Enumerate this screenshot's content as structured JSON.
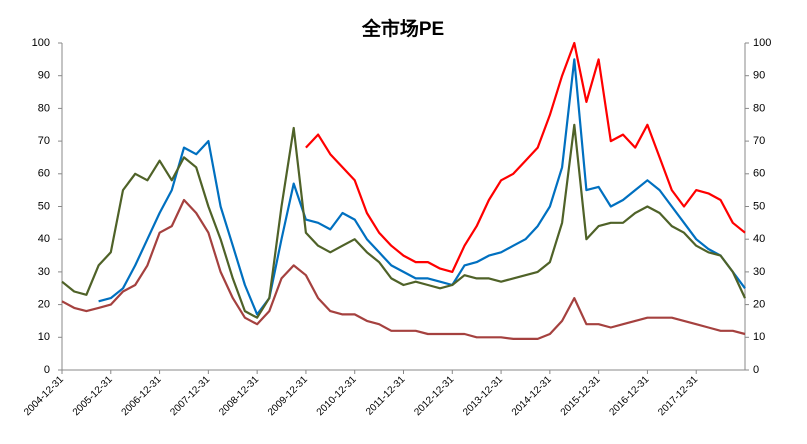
{
  "chart_data": {
    "type": "line",
    "title": "全市场PE",
    "categories": [
      "2004-12-31",
      null,
      null,
      null,
      "2005-12-31",
      null,
      null,
      null,
      "2006-12-31",
      null,
      null,
      null,
      "2007-12-31",
      null,
      null,
      null,
      "2008-12-31",
      null,
      null,
      null,
      "2009-12-31",
      null,
      null,
      null,
      "2010-12-31",
      null,
      null,
      null,
      "2011-12-31",
      null,
      null,
      null,
      "2012-12-31",
      null,
      null,
      null,
      "2013-12-31",
      null,
      null,
      null,
      "2014-12-31",
      null,
      null,
      null,
      "2015-12-31",
      null,
      null,
      null,
      "2016-12-31",
      null,
      null,
      null,
      "2017-12-31",
      null,
      null,
      null,
      null
    ],
    "series": [
      {
        "color": "#ff0000",
        "values": [
          null,
          null,
          null,
          null,
          null,
          null,
          null,
          null,
          null,
          null,
          null,
          null,
          null,
          null,
          null,
          null,
          null,
          null,
          null,
          null,
          68,
          72,
          66,
          62,
          58,
          48,
          42,
          38,
          35,
          33,
          33,
          31,
          30,
          38,
          44,
          52,
          58,
          60,
          64,
          68,
          78,
          90,
          100,
          82,
          95,
          70,
          72,
          68,
          75,
          65,
          55,
          50,
          55,
          54,
          52,
          45,
          42
        ]
      },
      {
        "color": "#0070c0",
        "values": [
          null,
          null,
          null,
          21,
          22,
          25,
          32,
          40,
          48,
          55,
          68,
          66,
          70,
          50,
          38,
          26,
          17,
          22,
          40,
          57,
          46,
          45,
          43,
          48,
          46,
          40,
          36,
          32,
          30,
          28,
          28,
          27,
          26,
          32,
          33,
          35,
          36,
          38,
          40,
          44,
          50,
          62,
          95,
          55,
          56,
          50,
          52,
          55,
          58,
          55,
          50,
          45,
          40,
          37,
          35,
          30,
          25
        ]
      },
      {
        "color": "#4f6228",
        "values": [
          27,
          24,
          23,
          32,
          36,
          55,
          60,
          58,
          64,
          58,
          65,
          62,
          50,
          40,
          28,
          18,
          16,
          22,
          50,
          74,
          42,
          38,
          36,
          38,
          40,
          36,
          33,
          28,
          26,
          27,
          26,
          25,
          26,
          29,
          28,
          28,
          27,
          28,
          29,
          30,
          33,
          45,
          75,
          40,
          44,
          45,
          45,
          48,
          50,
          48,
          44,
          42,
          38,
          36,
          35,
          30,
          22
        ]
      },
      {
        "color": "#a5413f",
        "values": [
          21,
          19,
          18,
          19,
          20,
          24,
          26,
          32,
          42,
          44,
          52,
          48,
          42,
          30,
          22,
          16,
          14,
          18,
          28,
          32,
          29,
          22,
          18,
          17,
          17,
          15,
          14,
          12,
          12,
          12,
          11,
          11,
          11,
          11,
          10,
          10,
          10,
          9.5,
          9.5,
          9.5,
          11,
          15,
          22,
          14,
          14,
          13,
          14,
          15,
          16,
          16,
          16,
          15,
          14,
          13,
          12,
          12,
          11
        ]
      }
    ],
    "ylim": [
      0,
      100
    ],
    "yticks": [
      0,
      10,
      20,
      30,
      40,
      50,
      60,
      70,
      80,
      90,
      100
    ],
    "y2lim": [
      0,
      100
    ],
    "y2ticks": [
      0,
      10,
      20,
      30,
      40,
      50,
      60,
      70,
      80,
      90,
      100
    ],
    "grid": false
  }
}
